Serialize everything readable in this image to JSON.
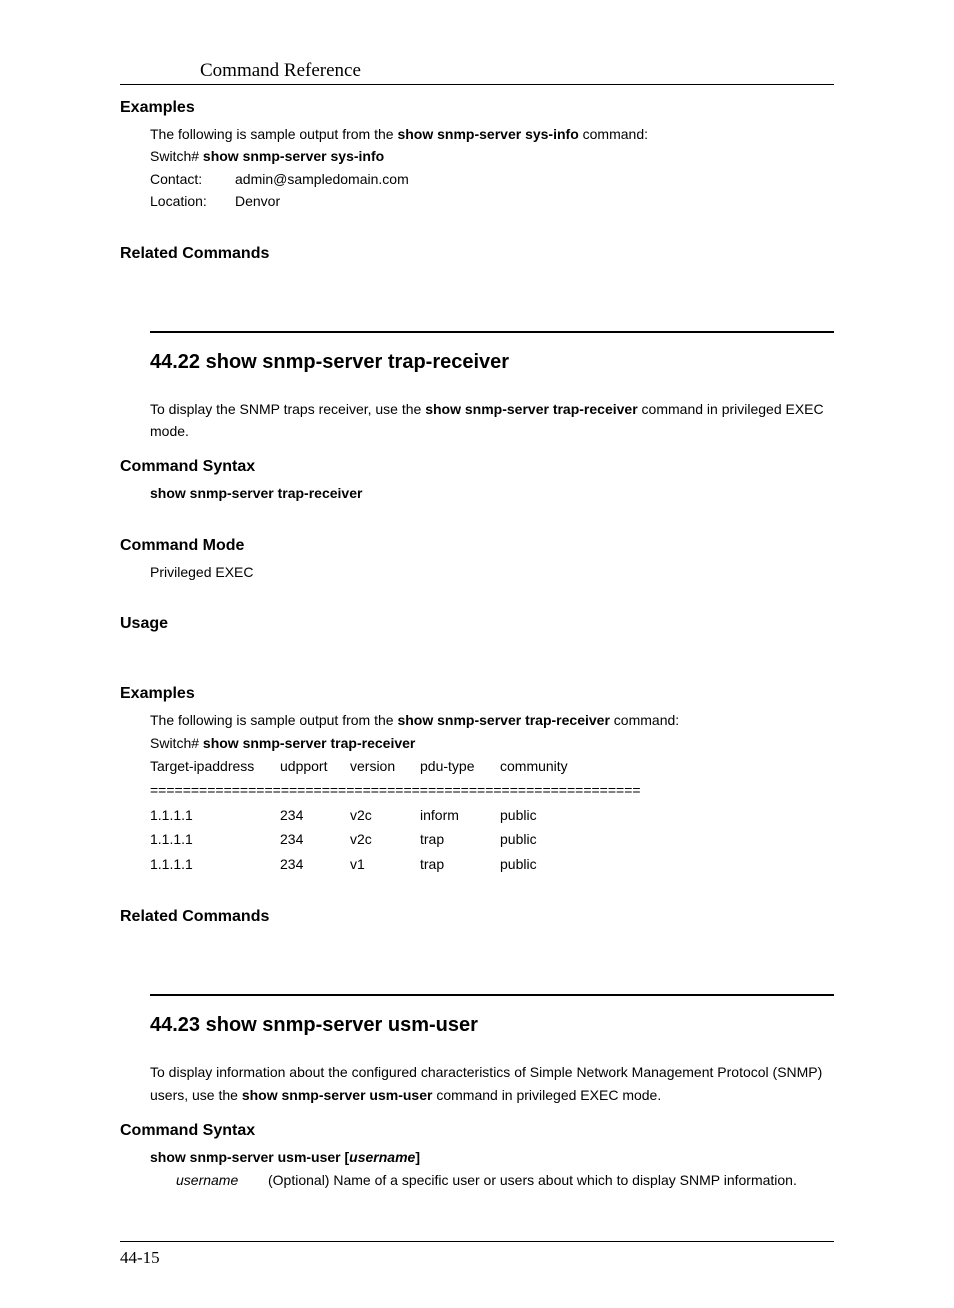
{
  "header": {
    "title": "Command Reference"
  },
  "sec1": {
    "examples_head": "Examples",
    "intro_pre": "The following is sample output from the ",
    "intro_cmd": "show snmp-server sys-info",
    "intro_post": " command:",
    "prompt": "Switch# ",
    "prompt_cmd": "show snmp-server sys-info",
    "contact_label": "Contact:",
    "contact_value": "admin@sampledomain.com",
    "location_label": "Location:",
    "location_value": "Denvor",
    "related_head": "Related Commands"
  },
  "sec2": {
    "title": "44.22   show snmp-server trap-receiver",
    "desc_pre": "To display the SNMP traps receiver, use the ",
    "desc_cmd": "show snmp-server trap-receiver",
    "desc_post": " command in privileged EXEC mode.",
    "syntax_head": "Command Syntax",
    "syntax_line": "show snmp-server trap-receiver",
    "mode_head": "Command Mode",
    "mode_value": "Privileged EXEC",
    "usage_head": "Usage",
    "examples_head": "Examples",
    "ex_intro_pre": "The following is sample output from the ",
    "ex_intro_cmd": "show snmp-server trap-receiver",
    "ex_intro_post": " command:",
    "ex_prompt": "Switch# ",
    "ex_prompt_cmd": "show snmp-server trap-receiver",
    "table_headers": {
      "c1": "Target-ipaddress",
      "c2": "udpport",
      "c3": "version",
      "c4": "pdu-type",
      "c5": "community"
    },
    "divider": "============================================================",
    "rows": [
      {
        "c1": "1.1.1.1",
        "c2": "234",
        "c3": "v2c",
        "c4": "inform",
        "c5": "public"
      },
      {
        "c1": "1.1.1.1",
        "c2": "234",
        "c3": "v2c",
        "c4": "trap",
        "c5": "public"
      },
      {
        "c1": "1.1.1.1",
        "c2": "234",
        "c3": "v1",
        "c4": "trap",
        "c5": "public"
      }
    ],
    "related_head": "Related Commands"
  },
  "sec3": {
    "title": "44.23   show snmp-server usm-user",
    "desc_pre": "To display information about the configured characteristics of Simple Network Management Protocol (SNMP) users, use the ",
    "desc_cmd": "show snmp-server usm-user",
    "desc_post": " command in privileged EXEC mode.",
    "syntax_head": "Command Syntax",
    "syntax_prefix": "show snmp-server usm-user [",
    "syntax_param": "username",
    "syntax_suffix": "]",
    "param_name": "username",
    "param_desc": "(Optional) Name of a specific user or users about which to display SNMP information."
  },
  "footer": {
    "page": "44-15"
  }
}
